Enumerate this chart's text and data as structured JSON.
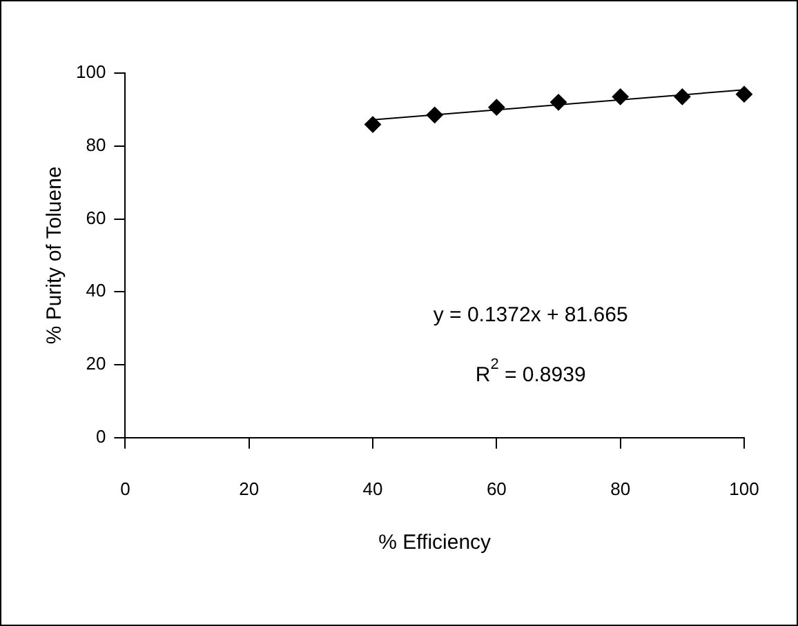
{
  "chart_data": {
    "type": "scatter",
    "xlabel": "% Efficiency",
    "ylabel": "% Purity of Toluene",
    "x": [
      40,
      50,
      60,
      70,
      80,
      90,
      100
    ],
    "series": [
      {
        "type": "scatter",
        "color": "#000000",
        "marker": "diamond",
        "values": [
          85.9,
          88.5,
          90.6,
          92.0,
          93.5,
          93.5,
          94.2
        ]
      },
      {
        "type": "line",
        "color": "#000000",
        "marker": "none",
        "x": [
          40,
          100
        ],
        "values": [
          87.2,
          95.4
        ]
      }
    ],
    "xlim": [
      0,
      100
    ],
    "xticks": [
      0,
      20,
      40,
      60,
      80,
      100
    ],
    "ylim": [
      0,
      100
    ],
    "yticks": [
      0,
      20,
      40,
      60,
      80,
      100
    ],
    "grid": false,
    "legend": false,
    "annotations": [
      "y = 0.1372x + 81.665",
      "R$^{2}$ = 0.8939"
    ]
  }
}
